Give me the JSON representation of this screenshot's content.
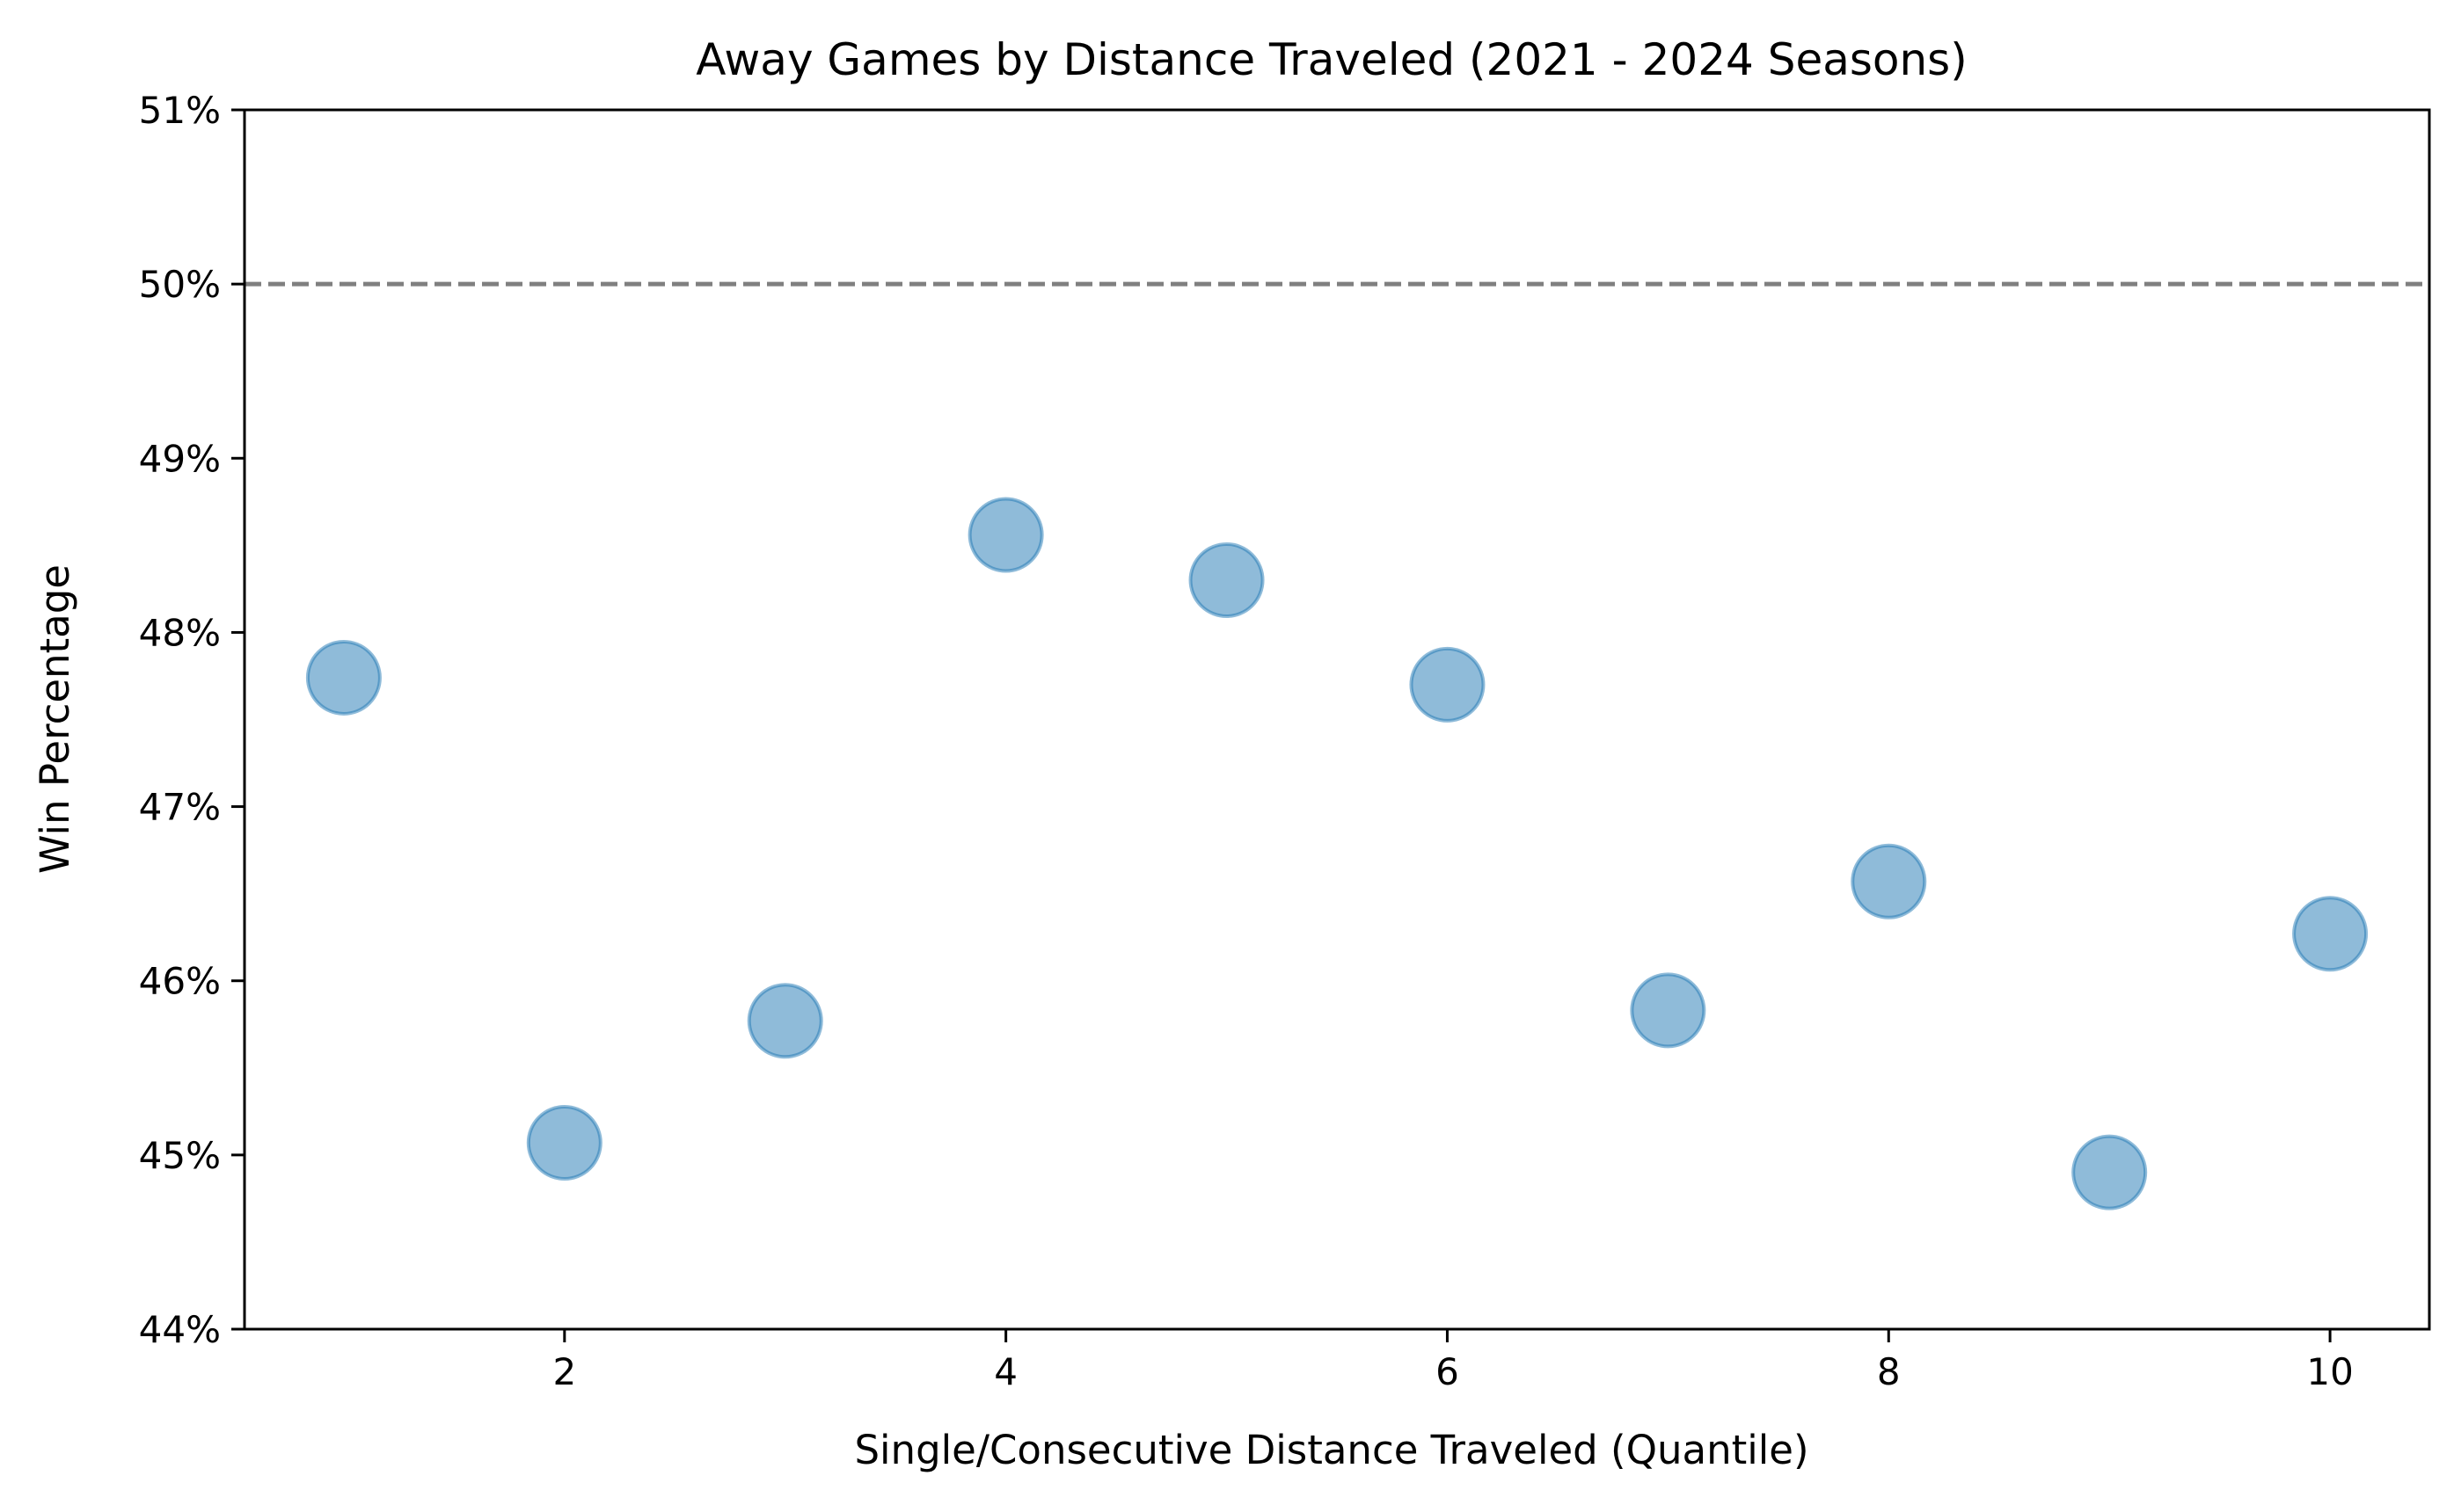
{
  "chart_data": {
    "type": "scatter",
    "title": "Away Games by Distance Traveled (2021 - 2024 Seasons)",
    "xlabel": "Single/Consecutive Distance Traveled (Quantile)",
    "ylabel": "Win Percentage",
    "xlim": [
      0.55,
      10.45
    ],
    "ylim": [
      44,
      51
    ],
    "x_ticks": [
      2,
      4,
      6,
      8,
      10
    ],
    "x_tick_labels": [
      "2",
      "4",
      "6",
      "8",
      "10"
    ],
    "y_ticks": [
      44,
      45,
      46,
      47,
      48,
      49,
      50,
      51
    ],
    "y_tick_labels": [
      "44%",
      "45%",
      "46%",
      "47%",
      "48%",
      "49%",
      "50%",
      "51%"
    ],
    "grid": false,
    "reference_line": {
      "y": 50,
      "style": "dashed",
      "color": "#808080"
    },
    "series": [
      {
        "color": "#1f77b4",
        "x": [
          1,
          2,
          3,
          4,
          5,
          6,
          7,
          8,
          9,
          10
        ],
        "y": [
          47.74,
          45.07,
          45.77,
          48.56,
          48.3,
          47.7,
          45.83,
          46.57,
          44.9,
          46.27
        ]
      }
    ]
  }
}
